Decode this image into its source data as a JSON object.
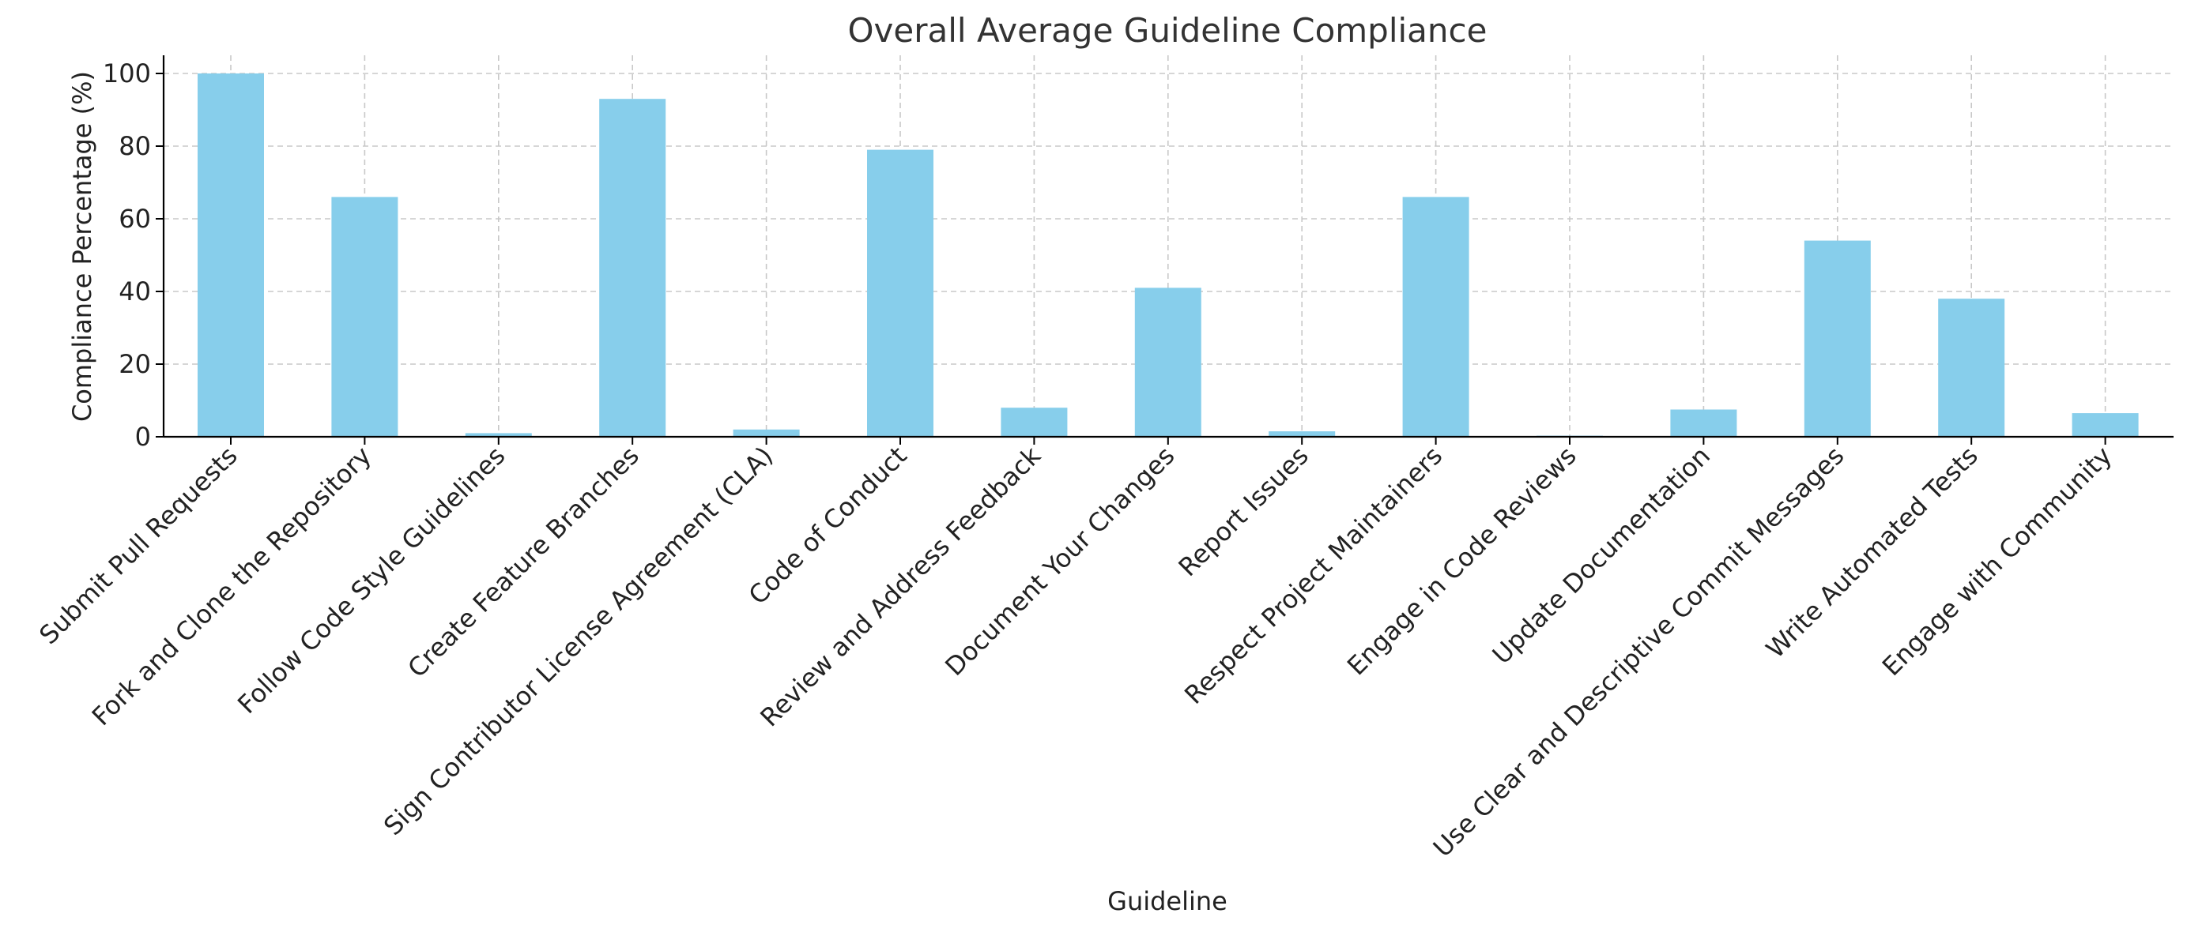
{
  "chart_data": {
    "type": "bar",
    "title": "Overall Average Guideline Compliance",
    "xlabel": "Guideline",
    "ylabel": "Compliance Percentage (%)",
    "ylim": [
      0,
      105
    ],
    "yticks": [
      0,
      20,
      40,
      60,
      80,
      100
    ],
    "grid": true,
    "bar_color": "#87CEEB",
    "categories": [
      "Submit Pull Requests",
      "Fork and Clone the Repository",
      "Follow Code Style Guidelines",
      "Create Feature Branches",
      "Sign Contributor License Agreement (CLA)",
      "Code of Conduct",
      "Review and Address Feedback",
      "Document Your Changes",
      "Report Issues",
      "Respect Project Maintainers",
      "Engage in Code Reviews",
      "Update Documentation",
      "Use Clear and Descriptive Commit Messages",
      "Write Automated Tests",
      "Engage with Community"
    ],
    "values": [
      100,
      66,
      1,
      93,
      2,
      79,
      8,
      41,
      1.5,
      66,
      0.3,
      7.5,
      54,
      38,
      6.5
    ]
  }
}
